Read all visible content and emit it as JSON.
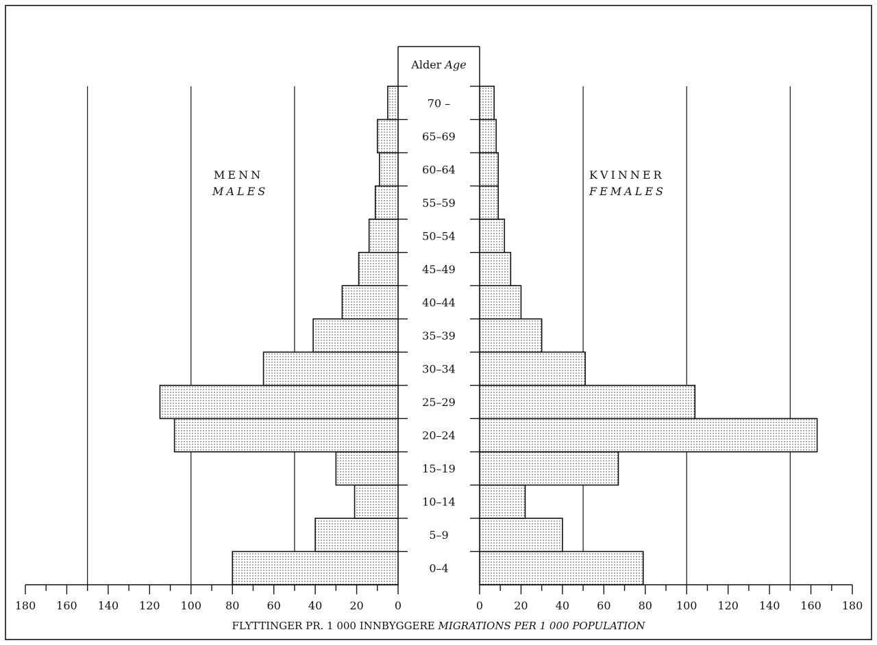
{
  "chart_data": {
    "type": "bar",
    "subtype": "population-pyramid",
    "age_header": {
      "no": "Alder",
      "en": "Age"
    },
    "male_label": {
      "no": "MENN",
      "en": "MALES"
    },
    "female_label": {
      "no": "KVINNER",
      "en": "FEMALES"
    },
    "xlabel": {
      "no": "FLYTTINGER PR. 1 000 INNBYGGERE",
      "en": "MIGRATIONS PER 1 000 POPULATION"
    },
    "xlim": [
      0,
      180
    ],
    "x_ticks": [
      "0",
      "20",
      "40",
      "60",
      "80",
      "100",
      "120",
      "140",
      "160",
      "180"
    ],
    "gridlines": [
      50,
      100,
      150
    ],
    "categories": [
      "0–4",
      "5–9",
      "10–14",
      "15–19",
      "20–24",
      "25–29",
      "30–34",
      "35–39",
      "40–44",
      "45–49",
      "50–54",
      "55–59",
      "60–64",
      "65–69",
      "70 –"
    ],
    "series": [
      {
        "name": "MENN / MALES",
        "values": [
          80,
          40,
          21,
          30,
          108,
          115,
          65,
          41,
          27,
          19,
          14,
          11,
          9,
          10,
          5
        ]
      },
      {
        "name": "KVINNER / FEMALES",
        "values": [
          79,
          40,
          22,
          67,
          163,
          104,
          51,
          30,
          20,
          15,
          12,
          9,
          9,
          8,
          7
        ]
      }
    ],
    "grid": true
  }
}
